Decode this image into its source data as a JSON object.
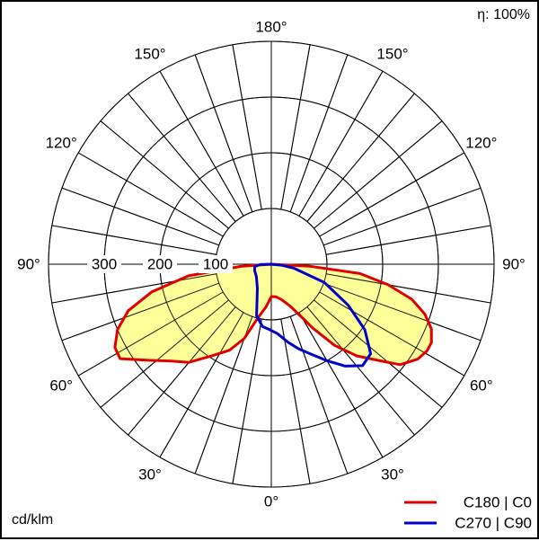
{
  "chart_data": {
    "type": "polar",
    "efficiency_label": "η: 100%",
    "unit_label": "cd/klm",
    "radial_ticks": [
      100,
      200,
      300
    ],
    "radial_max": 400,
    "angle_labels": [
      {
        "text": "180°",
        "angle": 180
      },
      {
        "text": "150°",
        "angle": 150
      },
      {
        "text": "150°",
        "angle": -150
      },
      {
        "text": "120°",
        "angle": 120
      },
      {
        "text": "120°",
        "angle": -120
      },
      {
        "text": "90°",
        "angle": 90
      },
      {
        "text": "90°",
        "angle": -90
      },
      {
        "text": "60°",
        "angle": 60
      },
      {
        "text": "60°",
        "angle": -60
      },
      {
        "text": "30°",
        "angle": 30
      },
      {
        "text": "30°",
        "angle": -30
      },
      {
        "text": "0°",
        "angle": 0
      }
    ],
    "series": [
      {
        "name": "C180 | C0",
        "color": "#e00000",
        "fill": "#ffff99",
        "points": [
          [
            0,
            58
          ],
          [
            8,
            59
          ],
          [
            16,
            66
          ],
          [
            24,
            82
          ],
          [
            30,
            110
          ],
          [
            33,
            137
          ],
          [
            38,
            185
          ],
          [
            43,
            225
          ],
          [
            48,
            258
          ],
          [
            52,
            293
          ],
          [
            57,
            313
          ],
          [
            61,
            320
          ],
          [
            64,
            320
          ],
          [
            68,
            310
          ],
          [
            72,
            290
          ],
          [
            76,
            260
          ],
          [
            80,
            213
          ],
          [
            84,
            160
          ],
          [
            87,
            70
          ],
          [
            90,
            0
          ],
          [
            -90,
            0
          ],
          [
            -86,
            55
          ],
          [
            -82,
            150
          ],
          [
            -77,
            220
          ],
          [
            -72,
            270
          ],
          [
            -67,
            300
          ],
          [
            -62,
            318
          ],
          [
            -58,
            320
          ],
          [
            -52,
            280
          ],
          [
            -46,
            250
          ],
          [
            -40,
            230
          ],
          [
            -33,
            196
          ],
          [
            -26,
            172
          ],
          [
            -20,
            142
          ],
          [
            -14,
            99
          ],
          [
            -7,
            77
          ],
          [
            0,
            58
          ]
        ]
      },
      {
        "name": "C270 | C90",
        "color": "#0000cc",
        "points": [
          [
            -90,
            0
          ],
          [
            -88,
            20
          ],
          [
            -82,
            30
          ],
          [
            -70,
            32
          ],
          [
            -50,
            35
          ],
          [
            -30,
            50
          ],
          [
            -16,
            96
          ],
          [
            -8,
            113
          ],
          [
            -2,
            117
          ],
          [
            5,
            125
          ],
          [
            12,
            143
          ],
          [
            18,
            160
          ],
          [
            24,
            177
          ],
          [
            30,
            200
          ],
          [
            36,
            226
          ],
          [
            42,
            245
          ],
          [
            48,
            240
          ],
          [
            55,
            205
          ],
          [
            62,
            156
          ],
          [
            71,
            101
          ],
          [
            80,
            41
          ],
          [
            84,
            20
          ],
          [
            90,
            0
          ]
        ]
      }
    ]
  }
}
